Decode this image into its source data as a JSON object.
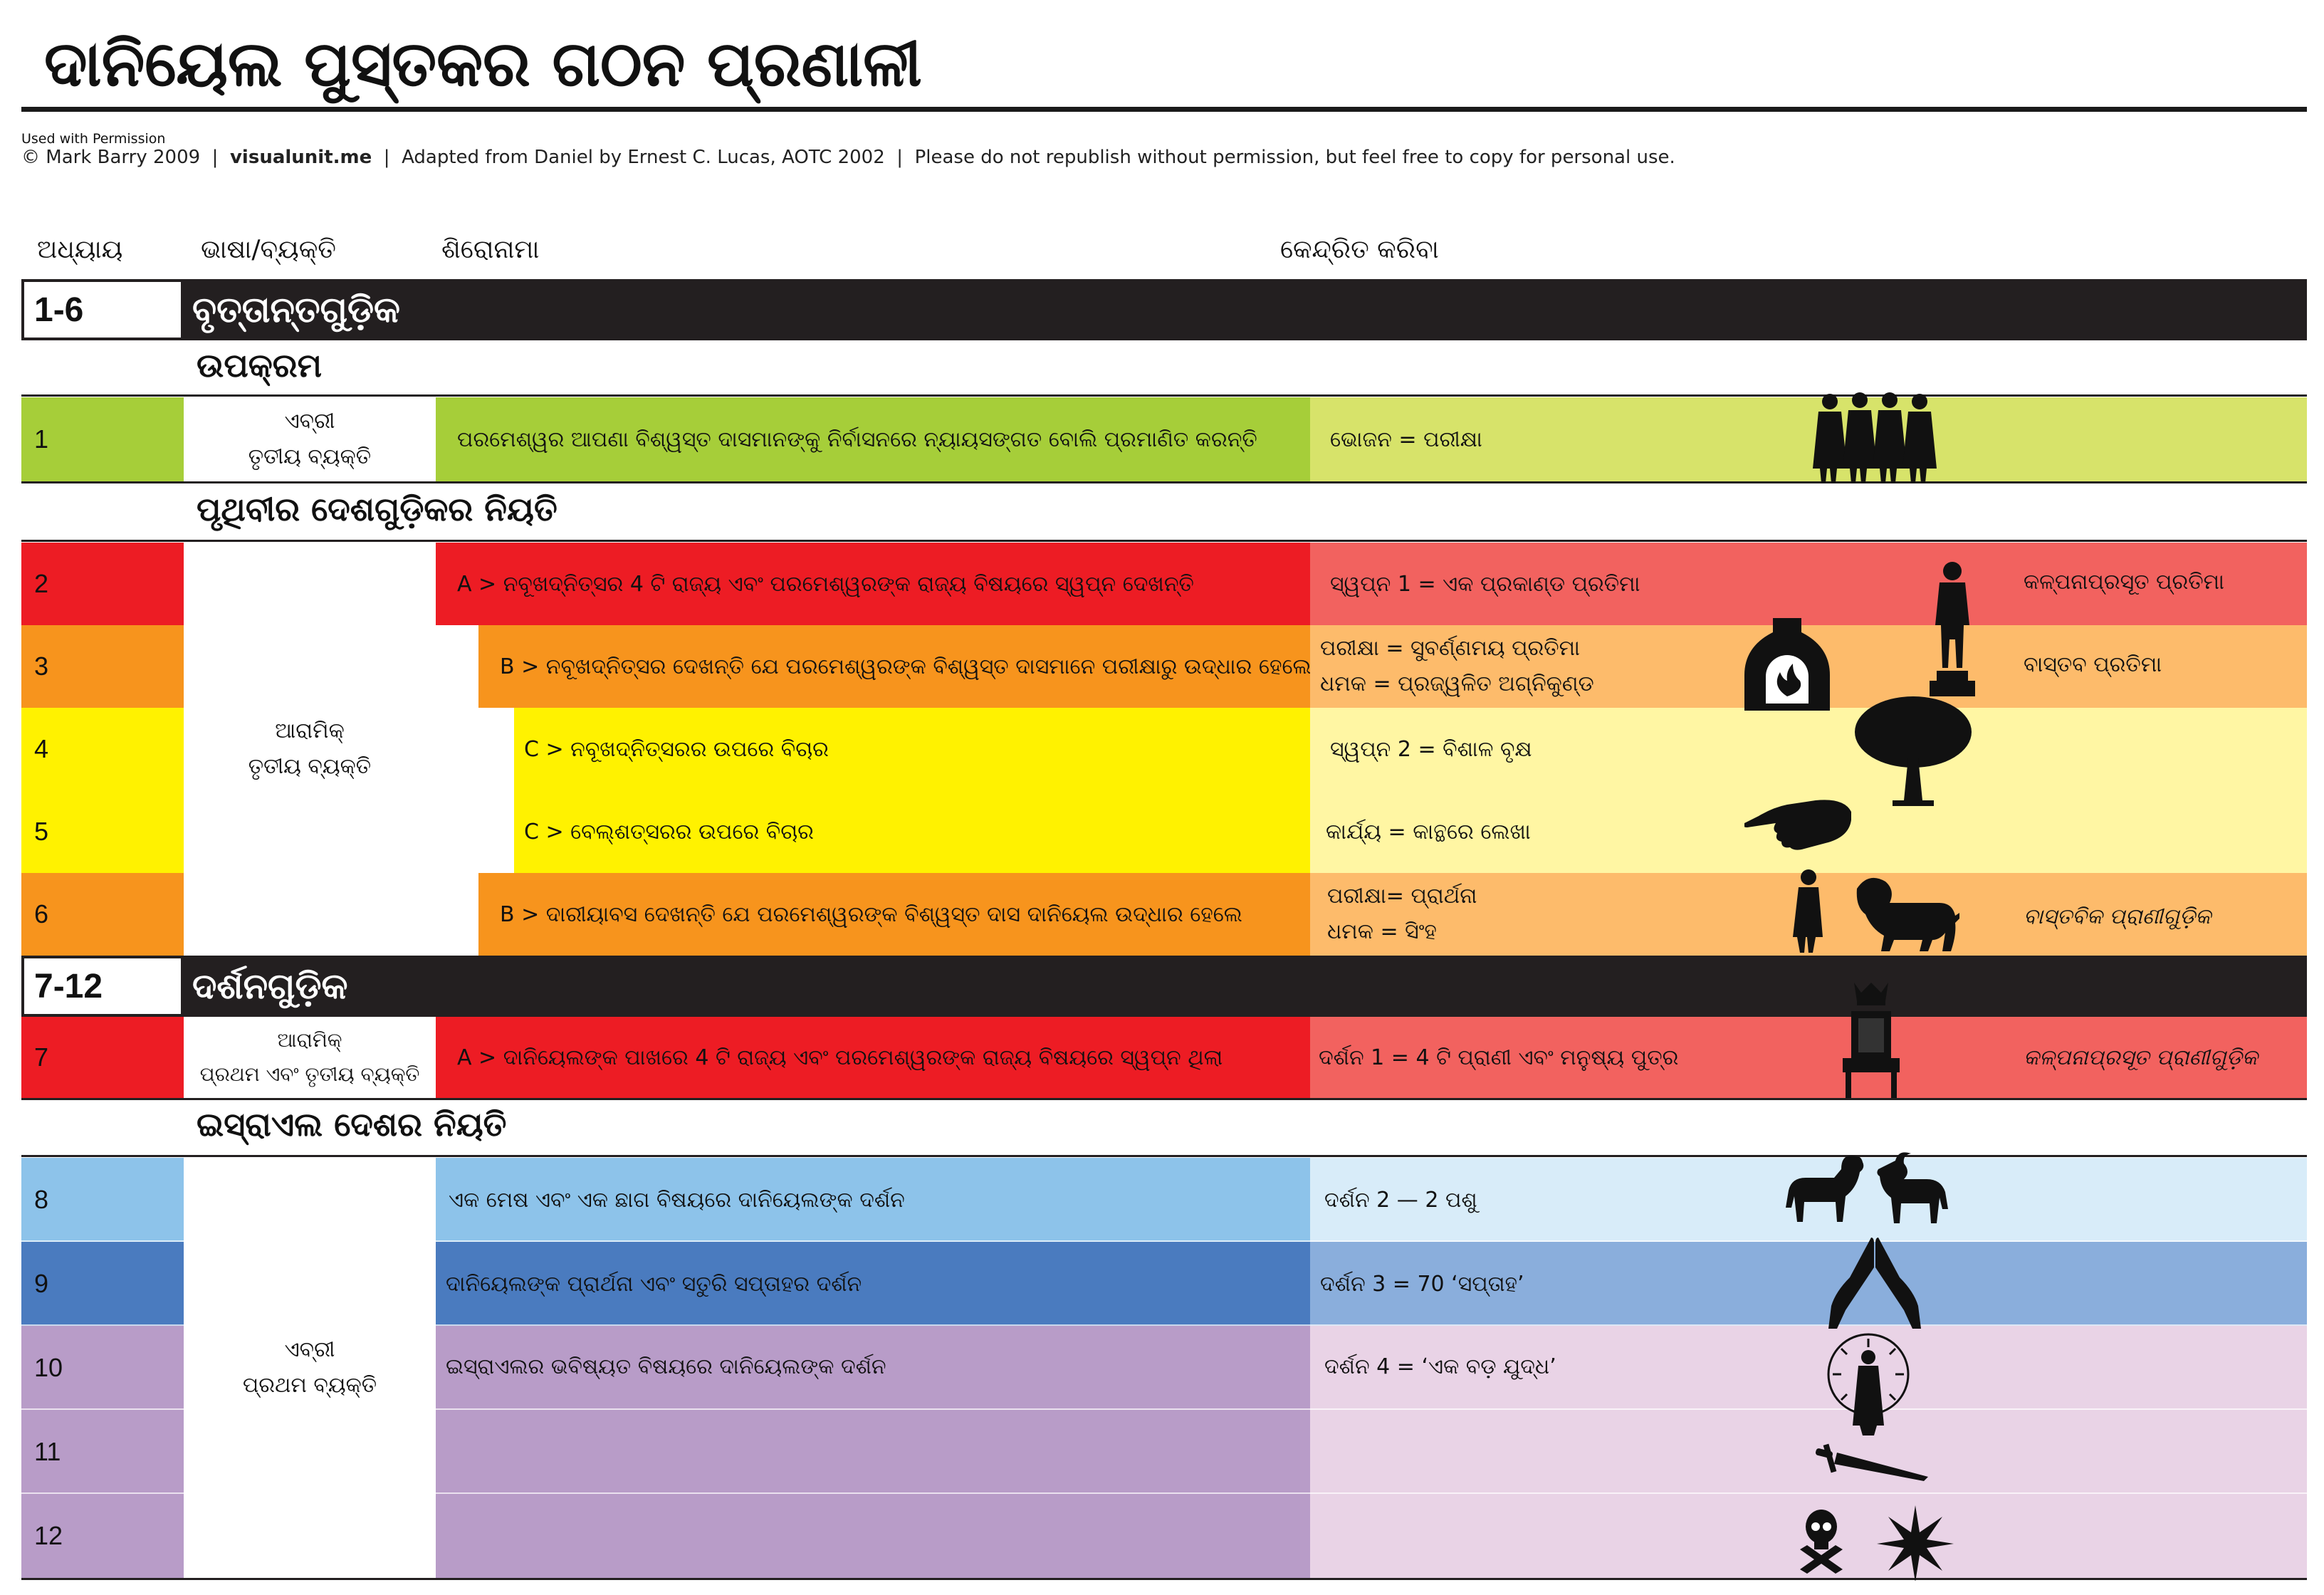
{
  "title": "ଦାନିୟେଲ ପୁସ୍ତକର ଗଠନ ପ୍ରଣାଳୀ",
  "permission": "Used with Permission",
  "credit": {
    "author": "© Mark Barry 2009",
    "site": "visualunit.me",
    "source": "Adapted from Daniel by Ernest C. Lucas, AOTC 2002",
    "notice": "Please do not republish without permission, but feel free to copy for personal use."
  },
  "columns": {
    "chapter": "ଅଧ୍ୟାୟ",
    "language": "ଭାଷା/ବ୍ୟକ୍ତି",
    "heading": "ଶିରୋନାମା",
    "focus": "କେନ୍ଦ୍ରିତ କରିବା"
  },
  "sections": {
    "stories": {
      "range": "1-6",
      "title": "ବୃତ୍ତାନ୍ତଗୁଡ଼ିକ"
    },
    "visions": {
      "range": "7-12",
      "title": "ଦର୍ଶନଗୁଡ଼ିକ"
    }
  },
  "subheads": {
    "intro": "ଉପକ୍ରମ",
    "nations": "ପୃଥିବୀର ଦେଶଗୁଡ଼ିକର ନିୟତି",
    "israel": "ଇସ୍ରାଏଲ ଦେଶର  ନିୟତି"
  },
  "languages": {
    "ch1": [
      "ଏବ୍ରୀ",
      "ତୃତୀୟ ବ୍ୟକ୍ତି"
    ],
    "ch2_6": [
      "ଆରାମିକ୍",
      "ତୃତୀୟ ବ୍ୟକ୍ତି"
    ],
    "ch7": [
      "ଆରାମିକ୍",
      "ପ୍ରଥମ ଏବଂ ତୃତୀୟ ବ୍ୟକ୍ତି"
    ],
    "ch8_12": [
      "ଏବ୍ରୀ",
      "ପ୍ରଥମ ବ୍ୟକ୍ତି"
    ]
  },
  "rows": [
    {
      "chapter": "1",
      "heading": "ପରମେଶ୍ୱର  ଆପଣା ବିଶ୍ୱସ୍ତ ଦାସମାନଙ୍କୁ ନିର୍ବାସନରେ ନ୍ୟାୟସଙ୍ଗତ ବୋଲି ପ୍ରମାଣିତ କରନ୍ତି",
      "focus": [
        "ଭୋଜନ = ପରୀକ୍ଷା"
      ],
      "note": "",
      "icon": "four-men-icon"
    },
    {
      "chapter": "2",
      "heading": "A > ନବୂଖଦ୍ନିତ୍ସର 4 ଟି ରାଜ୍ୟ ଏବଂ ପରମେଶ୍ୱରଙ୍କ ରାଜ୍ୟ ବିଷୟରେ ସ୍ୱପ୍ନ ଦେଖନ୍ତି",
      "focus": [
        "ସ୍ୱପ୍ନ 1  = ଏକ ପ୍ରକାଣ୍ଡ ପ୍ରତିମା"
      ],
      "note": "କଳ୍ପନାପ୍ରସୂତ ପ୍ରତିମା",
      "icon": "statue-icon"
    },
    {
      "chapter": "3",
      "heading": "B > ନବୂଖଦ୍ନିତ୍ସର ଦେଖନ୍ତି ଯେ ପରମେଶ୍ୱରଙ୍କ ବିଶ୍ୱସ୍ତ ଦାସମାନେ ପରୀକ୍ଷାରୁ ଉଦ୍ଧାର ହେଲେ",
      "focus": [
        "ପରୀକ୍ଷା = ସୁବର୍ଣ୍ଣମୟ ପ୍ରତିମା",
        " ଧମକ = ପ୍ରଜ୍ୱଳିତ ଅଗ୍ନିକୁଣ୍ଡ"
      ],
      "note": "ବାସ୍ତବ ପ୍ରତିମା",
      "icon": "furnace-icon"
    },
    {
      "chapter": "4",
      "heading": "C > ନବୂଖଦ୍ନିତ୍ସରର ଉପରେ ବିଚାର",
      "focus": [
        "ସ୍ୱପ୍ନ 2  = ବିଶାଳ ବୃକ୍ଷ"
      ],
      "note": "",
      "icon": "tree-icon"
    },
    {
      "chapter": "5",
      "heading": "C > ବେଲ୍ଶତ୍ସରର ଉପରେ ବିଚାର",
      "focus": [
        "କାର୍ଯ୍ୟ = କାନ୍ଥରେ ଲେଖା"
      ],
      "note": "",
      "icon": "pointing-hand-icon"
    },
    {
      "chapter": "6",
      "heading": "B > ଦାରୀୟାବସ ଦେଖନ୍ତି ଯେ ପରମେଶ୍ୱରଙ୍କ ବିଶ୍ୱସ୍ତ ଦାସ ଦାନିୟେଲ ଉଦ୍ଧାର ହେଲେ",
      "focus": [
        "ପରୀକ୍ଷା= ପ୍ରାର୍ଥନା",
        "ଧମକ = ସିଂହ"
      ],
      "note": "ବାସ୍ତବିକ ପ୍ରାଣୀଗୁଡ଼ିକ",
      "icon": "man-lion-icon"
    },
    {
      "chapter": "7",
      "heading": "A > ଦାନିୟେଲଙ୍କ ପାଖରେ 4 ଟି ରାଜ୍ୟ ଏବଂ ପରମେଶ୍ୱରଙ୍କ ରାଜ୍ୟ ବିଷୟରେ ସ୍ୱପ୍ନ ଥିଲା",
      "focus": [
        "ଦର୍ଶନ 1 = 4 ଟି ପ୍ରାଣୀ ଏବଂ ମନୁଷ୍ୟ ପୁତ୍ର"
      ],
      "note": "କଳ୍ପନାପ୍ରସୂତ ପ୍ରାଣୀଗୁଡ଼ିକ",
      "icon": "throne-icon"
    },
    {
      "chapter": "8",
      "heading": "ଏକ ମେଷ ଏବଂ ଏକ  ଛାଗ ବିଷୟରେ ଦାନିୟେଲଙ୍କ ଦର୍ଶନ",
      "focus": [
        "ଦର୍ଶନ 2 — 2 ପଶୁ"
      ],
      "note": "",
      "icon": "ram-goat-icon"
    },
    {
      "chapter": "9",
      "heading": "ଦାନିୟେଲଙ୍କ ପ୍ରାର୍ଥନା ଏବଂ ସତୁରି ସପ୍ତାହର ଦର୍ଶନ",
      "focus": [
        "ଦର୍ଶନ 3 = 70 ‘ସପ୍ତାହ’"
      ],
      "note": "",
      "icon": "praying-hands-icon"
    },
    {
      "chapter": "10",
      "heading": "ଇସ୍ରାଏଲର ଭବିଷ୍ୟତ ବିଷୟରେ ଦାନିୟେଲଙ୍କ ଦର୍ଶନ",
      "focus": [
        "ଦର୍ଶନ 4 = ‘ଏକ ବଡ଼ ଯୁଦ୍ଧ’"
      ],
      "note": "",
      "icon": "radiant-figure-icon"
    },
    {
      "chapter": "11",
      "heading": "",
      "focus": [
        ""
      ],
      "note": "",
      "icon": "sword-icon"
    },
    {
      "chapter": "12",
      "heading": "",
      "focus": [
        ""
      ],
      "note": "",
      "icon": "skull-star-icon"
    }
  ],
  "colors": {
    "section_bar": "#231f20",
    "green_dark": "#a6ce39",
    "green_light": "#d7e36a",
    "red_dark": "#ed1c24",
    "red_light": "#f2625f",
    "orange_dark": "#f7941d",
    "orange_light": "#fdbb6b",
    "yellow_dark": "#fff200",
    "yellow_light": "#fff6a3",
    "lightblue_dark": "#8dc3ea",
    "lightblue_light": "#d8ecf9",
    "blue_dark": "#4a7bbf",
    "blue_light": "#8aaedc",
    "purple_dark": "#b89cc8",
    "purple_light": "#e9d3e6"
  }
}
